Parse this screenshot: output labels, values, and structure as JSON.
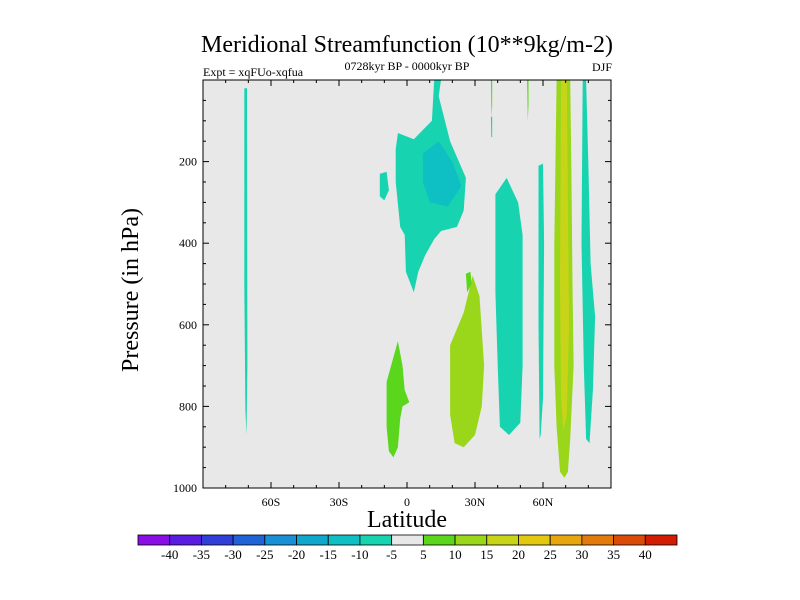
{
  "chart_data": {
    "type": "contour",
    "title": "Meridional Streamfunction (10**9kg/m-2)",
    "subtitle_left": "Expt = xqFUo-xqfua",
    "subtitle_center": "0728kyr BP - 0000kyr BP",
    "subtitle_right": "DJF",
    "xlabel": "Latitude",
    "ylabel": "Pressure (in hPa)",
    "xlim": [
      -90,
      90
    ],
    "ylim": [
      1000,
      0
    ],
    "x_ticks": [
      {
        "value": -60,
        "label": "60S"
      },
      {
        "value": -30,
        "label": "30S"
      },
      {
        "value": 0,
        "label": "0"
      },
      {
        "value": 30,
        "label": "30N"
      },
      {
        "value": 60,
        "label": "60N"
      }
    ],
    "y_ticks": [
      {
        "value": 200,
        "label": "200"
      },
      {
        "value": 400,
        "label": "400"
      },
      {
        "value": 600,
        "label": "600"
      },
      {
        "value": 800,
        "label": "800"
      },
      {
        "value": 1000,
        "label": "1000"
      }
    ],
    "background_color": "#e8e8e8",
    "colorbar": {
      "levels": [
        -40,
        -35,
        -30,
        -25,
        -20,
        -15,
        -10,
        -5,
        5,
        10,
        15,
        20,
        25,
        30,
        35,
        40
      ],
      "labels": [
        "-40",
        "-35",
        "-30",
        "-25",
        "-20",
        "-15",
        "-10",
        "-5",
        "5",
        "10",
        "15",
        "20",
        "25",
        "30",
        "35",
        "40"
      ],
      "colors": [
        "#8a0ee6",
        "#5a1ce0",
        "#2f3fd8",
        "#1f63d6",
        "#1990d6",
        "#10a7cc",
        "#0ec0c4",
        "#18d3b0",
        "#e8e8e8",
        "#5ad61c",
        "#9ad61a",
        "#c8d418",
        "#e3c810",
        "#e7a60e",
        "#e27a0c",
        "#dc4a08",
        "#d21c04"
      ]
    },
    "regions": [
      {
        "name": "sh-thin-negative-column",
        "value": -7.5,
        "polygon": [
          [
            -71.8,
            20
          ],
          [
            -70.6,
            20
          ],
          [
            -70.4,
            700
          ],
          [
            -70.8,
            870
          ],
          [
            -71.3,
            810
          ],
          [
            -71.8,
            500
          ]
        ]
      },
      {
        "name": "tropical-upper-negative-cell",
        "value": -7.5,
        "polygon": [
          [
            -4,
            130
          ],
          [
            3,
            145
          ],
          [
            11,
            100
          ],
          [
            12,
            0
          ],
          [
            15,
            0
          ],
          [
            14,
            40
          ],
          [
            19,
            150
          ],
          [
            26,
            240
          ],
          [
            25,
            320
          ],
          [
            22,
            360
          ],
          [
            15,
            370
          ],
          [
            12,
            390
          ],
          [
            8,
            430
          ],
          [
            5,
            470
          ],
          [
            3,
            520
          ],
          [
            -0.5,
            470
          ],
          [
            -1,
            380
          ],
          [
            -3,
            360
          ],
          [
            -5,
            250
          ],
          [
            -5,
            170
          ]
        ]
      },
      {
        "name": "tropical-upper-core",
        "value": -12.5,
        "polygon": [
          [
            7,
            180
          ],
          [
            14,
            150
          ],
          [
            20,
            200
          ],
          [
            24,
            260
          ],
          [
            18,
            310
          ],
          [
            10,
            300
          ],
          [
            7,
            250
          ]
        ]
      },
      {
        "name": "small-negative-blob",
        "value": -7.5,
        "polygon": [
          [
            -12,
            230
          ],
          [
            -9,
            225
          ],
          [
            -8,
            270
          ],
          [
            -10,
            295
          ],
          [
            -12,
            285
          ]
        ]
      },
      {
        "name": "tropical-lower-positive",
        "value": 7.5,
        "polygon": [
          [
            -9,
            740
          ],
          [
            -4,
            640
          ],
          [
            -2,
            700
          ],
          [
            -1,
            760
          ],
          [
            1,
            790
          ],
          [
            -2,
            800
          ],
          [
            -3,
            830
          ],
          [
            -4,
            900
          ],
          [
            -6,
            925
          ],
          [
            -8,
            910
          ],
          [
            -9,
            850
          ]
        ]
      },
      {
        "name": "nh-subtropical-positive",
        "value": 12.5,
        "polygon": [
          [
            19,
            650
          ],
          [
            25,
            570
          ],
          [
            29,
            480
          ],
          [
            32,
            530
          ],
          [
            34,
            700
          ],
          [
            33,
            800
          ],
          [
            30,
            870
          ],
          [
            25,
            900
          ],
          [
            21,
            890
          ],
          [
            19,
            820
          ]
        ]
      },
      {
        "name": "nh-lower-positive-spot",
        "value": 7.5,
        "polygon": [
          [
            26,
            475
          ],
          [
            28,
            470
          ],
          [
            28.5,
            500
          ],
          [
            26.5,
            520
          ]
        ]
      },
      {
        "name": "nh-midlat-negative",
        "value": -7.5,
        "polygon": [
          [
            39,
            280
          ],
          [
            44,
            240
          ],
          [
            49,
            300
          ],
          [
            51,
            380
          ],
          [
            51,
            700
          ],
          [
            50,
            840
          ],
          [
            45,
            870
          ],
          [
            41,
            850
          ],
          [
            40,
            700
          ],
          [
            39,
            520
          ]
        ]
      },
      {
        "name": "thin-negative-column-55n",
        "value": -7.5,
        "polygon": [
          [
            58,
            210
          ],
          [
            60,
            205
          ],
          [
            60.5,
            400
          ],
          [
            60,
            780
          ],
          [
            59,
            870
          ],
          [
            58.5,
            880
          ],
          [
            58,
            600
          ]
        ]
      },
      {
        "name": "high-lat-positive-column",
        "value": 12.5,
        "polygon": [
          [
            66,
            0
          ],
          [
            72,
            0
          ],
          [
            72.5,
            200
          ],
          [
            73,
            500
          ],
          [
            73.5,
            700
          ],
          [
            72,
            880
          ],
          [
            71,
            960
          ],
          [
            69.5,
            975
          ],
          [
            67.5,
            960
          ],
          [
            66,
            850
          ],
          [
            65,
            700
          ],
          [
            65,
            400
          ]
        ]
      },
      {
        "name": "high-lat-positive-core",
        "value": 17.5,
        "polygon": [
          [
            68,
            0
          ],
          [
            70.5,
            0
          ],
          [
            71,
            300
          ],
          [
            71.5,
            600
          ],
          [
            70.5,
            820
          ],
          [
            69,
            860
          ],
          [
            68,
            780
          ],
          [
            67.5,
            500
          ]
        ]
      },
      {
        "name": "thin-negative-column-75n",
        "value": -7.5,
        "polygon": [
          [
            77.5,
            0
          ],
          [
            79,
            0
          ],
          [
            80,
            200
          ],
          [
            81,
            450
          ],
          [
            83,
            580
          ],
          [
            82,
            760
          ],
          [
            80.5,
            890
          ],
          [
            79,
            880
          ],
          [
            78,
            700
          ],
          [
            77,
            400
          ]
        ]
      },
      {
        "name": "thin-positive-column-37n",
        "value": 7.5,
        "polygon": [
          [
            37,
            0
          ],
          [
            37.6,
            0
          ],
          [
            37.6,
            60
          ],
          [
            37.3,
            90
          ]
        ]
      },
      {
        "name": "thin-positive-column-53n",
        "value": 7.5,
        "polygon": [
          [
            53,
            0
          ],
          [
            53.6,
            0
          ],
          [
            53.6,
            60
          ],
          [
            53.3,
            100
          ]
        ]
      },
      {
        "name": "tiny-negative-spot",
        "value": -7.5,
        "polygon": [
          [
            37,
            90
          ],
          [
            37.6,
            90
          ],
          [
            37.6,
            140
          ],
          [
            37.2,
            140
          ]
        ]
      }
    ]
  }
}
